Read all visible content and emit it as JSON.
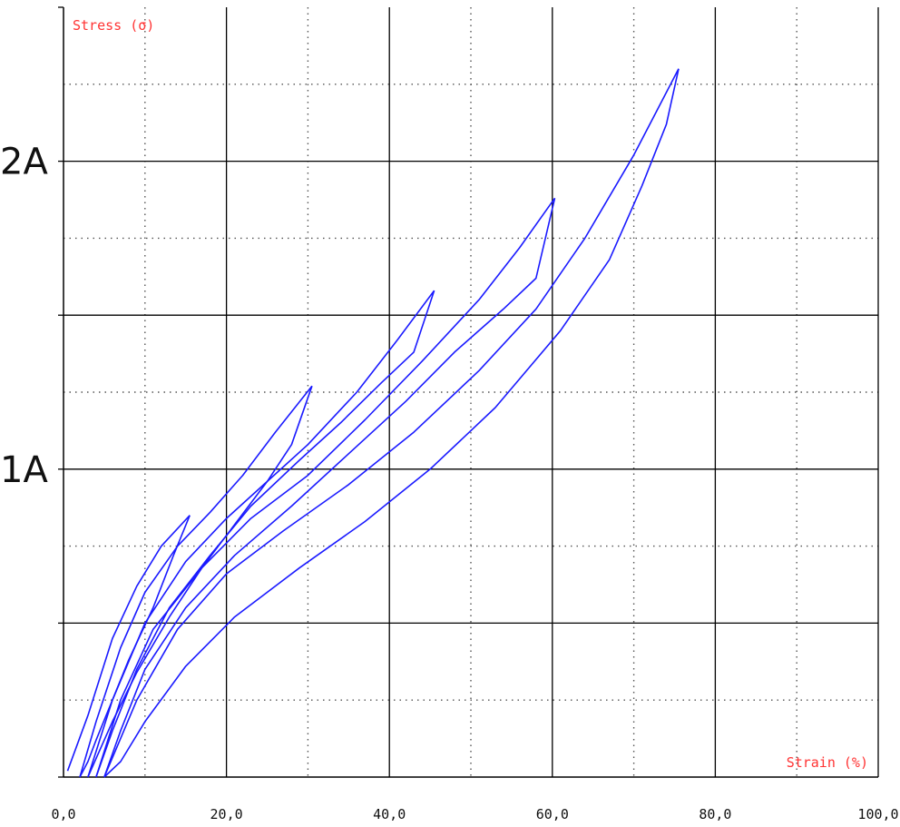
{
  "chart_data": {
    "type": "line",
    "xlabel": "Strain (%)",
    "ylabel": "Stress (σ)",
    "xlim": [
      0,
      100
    ],
    "ylim": [
      0,
      2.5
    ],
    "x_ticks": [
      {
        "value": 0,
        "label": "0,0"
      },
      {
        "value": 20,
        "label": "20,0"
      },
      {
        "value": 40,
        "label": "40,0"
      },
      {
        "value": 60,
        "label": "60,0"
      },
      {
        "value": 80,
        "label": "80,0"
      },
      {
        "value": 100,
        "label": "100,0"
      }
    ],
    "y_ticks": [
      {
        "value": 1,
        "label": "1A"
      },
      {
        "value": 2,
        "label": "2A"
      }
    ],
    "grid": true,
    "colors": {
      "series": "#1a1aff",
      "axis_label": "#ff3333",
      "major_grid": "#000000",
      "minor_grid": "#555555"
    },
    "series": [
      {
        "x": [
          0.5,
          3,
          6,
          9,
          12,
          15.5
        ],
        "y": [
          0.02,
          0.2,
          0.45,
          0.62,
          0.75,
          0.85
        ]
      },
      {
        "x": [
          15.5,
          13.5,
          11,
          8,
          6,
          4,
          3,
          2
        ],
        "y": [
          0.85,
          0.72,
          0.55,
          0.38,
          0.25,
          0.12,
          0.05,
          0.0
        ]
      },
      {
        "x": [
          2,
          4,
          7,
          10,
          14,
          18,
          22,
          26,
          30.5
        ],
        "y": [
          0.0,
          0.18,
          0.42,
          0.6,
          0.75,
          0.86,
          0.98,
          1.12,
          1.27
        ]
      },
      {
        "x": [
          30.5,
          28,
          25,
          21,
          17,
          13,
          9,
          6,
          4,
          3
        ],
        "y": [
          1.27,
          1.08,
          0.96,
          0.82,
          0.68,
          0.52,
          0.34,
          0.18,
          0.06,
          0.0
        ]
      },
      {
        "x": [
          3,
          6,
          10,
          15,
          20,
          25,
          30,
          36,
          41,
          45.5
        ],
        "y": [
          0.0,
          0.25,
          0.5,
          0.7,
          0.84,
          0.96,
          1.08,
          1.25,
          1.42,
          1.58
        ]
      },
      {
        "x": [
          45.5,
          43,
          39,
          34,
          29,
          23,
          18,
          13,
          9,
          6,
          4
        ],
        "y": [
          1.58,
          1.38,
          1.28,
          1.15,
          1.03,
          0.88,
          0.72,
          0.55,
          0.35,
          0.15,
          0.0
        ]
      },
      {
        "x": [
          4,
          7,
          11,
          17,
          23,
          30,
          37,
          44,
          51,
          56,
          60.3
        ],
        "y": [
          0.0,
          0.25,
          0.48,
          0.68,
          0.84,
          0.98,
          1.16,
          1.35,
          1.55,
          1.72,
          1.88
        ]
      },
      {
        "x": [
          60.3,
          58,
          54,
          48,
          42,
          35,
          28,
          21,
          15,
          10,
          7,
          5
        ],
        "y": [
          1.88,
          1.62,
          1.52,
          1.38,
          1.22,
          1.05,
          0.88,
          0.72,
          0.55,
          0.35,
          0.15,
          0.0
        ]
      },
      {
        "x": [
          5,
          9,
          14,
          20,
          27,
          35,
          43,
          51,
          58,
          64,
          70,
          75.5
        ],
        "y": [
          0.0,
          0.25,
          0.48,
          0.66,
          0.8,
          0.95,
          1.12,
          1.32,
          1.52,
          1.75,
          2.02,
          2.3
        ]
      },
      {
        "x": [
          75.5,
          74,
          71,
          67,
          61,
          53,
          45,
          37,
          29,
          21,
          15,
          10,
          7,
          5
        ],
        "y": [
          2.3,
          2.12,
          1.92,
          1.68,
          1.45,
          1.2,
          1.0,
          0.83,
          0.68,
          0.52,
          0.36,
          0.18,
          0.05,
          0.0
        ]
      }
    ]
  }
}
